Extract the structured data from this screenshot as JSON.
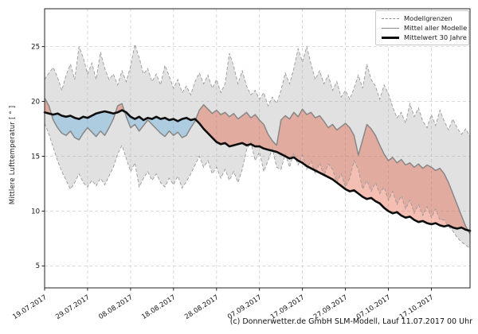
{
  "caption": "(c) Donnerwetter.de GmbH SLM-Modell, Lauf 11.07.2017 00 Uhr",
  "legend": {
    "items": [
      {
        "label": "Modellgrenzen",
        "style": "dashed-gray"
      },
      {
        "label": "Mittel aller Modelle",
        "style": "solid-gray"
      },
      {
        "label": "Mittelwert 30 Jahre",
        "style": "thick-black"
      }
    ]
  },
  "chart_data": {
    "type": "line",
    "title": "",
    "xlabel": "",
    "ylabel": "Mittlere Lufttemperatur [ ° ]",
    "ylim": [
      3.0,
      28.45
    ],
    "yticks": [
      5,
      10,
      15,
      20,
      25
    ],
    "grid": true,
    "legend_position": "upper right",
    "x_start_date": "19.07.2017",
    "x_step_days": 1,
    "x_ticks": [
      {
        "day": 0,
        "label": "19.07.2017"
      },
      {
        "day": 10,
        "label": "29.07.2017"
      },
      {
        "day": 20,
        "label": "08.08.2017"
      },
      {
        "day": 30,
        "label": "18.08.2017"
      },
      {
        "day": 40,
        "label": "28.08.2017"
      },
      {
        "day": 50,
        "label": "07.09.2017"
      },
      {
        "day": 60,
        "label": "17.09.2017"
      },
      {
        "day": 70,
        "label": "27.09.2017"
      },
      {
        "day": 80,
        "label": "07.10.2017"
      },
      {
        "day": 90,
        "label": "17.10.2017"
      }
    ],
    "colors": {
      "band_fill": "rgba(170,170,170,0.35)",
      "bound_line": "#999999",
      "mean_line": "#878787",
      "climate_line": "#0d0d0d",
      "warm_fill": "rgba(225,85,55,0.38)",
      "cold_fill": "rgba(110,180,225,0.45)",
      "grid": "#d0d0d0",
      "frame": "#222222",
      "tick_text": "#111111"
    },
    "series": [
      {
        "name": "Modellgrenze oben",
        "role": "upper_bound",
        "values": [
          22.0,
          22.6,
          23.1,
          22.2,
          21.0,
          22.4,
          23.4,
          22.0,
          25.0,
          24.0,
          22.5,
          23.5,
          22.0,
          24.5,
          23.0,
          22.0,
          22.5,
          21.5,
          22.8,
          21.8,
          23.2,
          25.2,
          24.0,
          22.5,
          23.0,
          21.8,
          22.5,
          21.5,
          23.3,
          22.3,
          21.2,
          22.0,
          20.8,
          21.4,
          20.6,
          21.8,
          22.6,
          21.6,
          22.4,
          21.2,
          22.0,
          20.8,
          21.6,
          24.4,
          23.2,
          21.6,
          22.8,
          21.4,
          20.6,
          21.0,
          20.2,
          20.8,
          19.6,
          20.4,
          19.8,
          21.0,
          22.6,
          21.6,
          23.0,
          24.8,
          23.6,
          25.0,
          23.4,
          22.0,
          22.8,
          21.6,
          22.4,
          21.0,
          21.8,
          20.4,
          21.0,
          20.2,
          21.2,
          22.4,
          21.2,
          23.4,
          22.0,
          21.4,
          20.2,
          21.5,
          20.7,
          19.5,
          18.5,
          19.0,
          18.0,
          19.8,
          18.6,
          19.4,
          18.2,
          17.6,
          18.8,
          17.8,
          19.2,
          18.2,
          17.4,
          18.4,
          17.6,
          17.0,
          17.5,
          16.8
        ]
      },
      {
        "name": "Modellgrenze unten",
        "role": "lower_bound",
        "values": [
          18.0,
          17.0,
          15.8,
          14.6,
          13.6,
          12.8,
          12.0,
          12.6,
          13.4,
          12.6,
          12.2,
          12.8,
          12.3,
          13.0,
          12.4,
          13.2,
          14.0,
          15.2,
          16.0,
          14.8,
          13.6,
          14.4,
          12.2,
          13.0,
          13.6,
          12.8,
          13.4,
          12.6,
          12.2,
          13.0,
          12.4,
          13.2,
          12.1,
          12.7,
          13.4,
          14.2,
          15.0,
          14.0,
          14.6,
          13.4,
          14.0,
          13.0,
          13.8,
          12.8,
          13.6,
          12.6,
          13.8,
          15.6,
          16.3,
          14.6,
          15.4,
          13.6,
          14.6,
          15.7,
          14.0,
          13.8,
          15.2,
          14.0,
          15.3,
          14.2,
          15.1,
          13.8,
          14.6,
          13.4,
          14.4,
          13.2,
          14.3,
          13.8,
          12.6,
          13.4,
          12.2,
          13.0,
          14.6,
          13.8,
          12.0,
          12.8,
          11.8,
          12.6,
          11.6,
          12.2,
          11.0,
          11.8,
          10.6,
          11.4,
          10.2,
          11.0,
          9.8,
          10.6,
          9.6,
          10.4,
          9.4,
          10.2,
          9.2,
          9.2,
          8.6,
          8.2,
          7.6,
          7.2,
          6.9,
          6.6
        ]
      },
      {
        "name": "Mittel aller Modelle",
        "role": "model_mean",
        "values": [
          20.3,
          19.6,
          18.3,
          17.6,
          17.1,
          16.9,
          17.3,
          16.7,
          16.5,
          17.1,
          17.6,
          17.2,
          16.8,
          17.3,
          16.9,
          17.6,
          18.4,
          19.6,
          19.8,
          18.6,
          17.6,
          17.9,
          17.3,
          17.8,
          18.3,
          17.9,
          17.5,
          17.1,
          16.8,
          17.3,
          16.9,
          17.2,
          16.7,
          16.9,
          17.6,
          18.2,
          19.2,
          19.7,
          19.3,
          18.9,
          19.2,
          18.8,
          19.0,
          18.6,
          18.9,
          18.4,
          18.7,
          19.0,
          18.5,
          18.8,
          18.3,
          17.9,
          17.0,
          16.4,
          16.0,
          18.3,
          18.7,
          18.4,
          19.0,
          18.6,
          19.3,
          18.8,
          19.0,
          18.5,
          18.7,
          18.2,
          17.6,
          17.9,
          17.4,
          17.7,
          18.0,
          17.6,
          16.9,
          15.1,
          16.5,
          17.9,
          17.5,
          16.9,
          16.0,
          15.2,
          14.6,
          14.9,
          14.4,
          14.7,
          14.2,
          14.4,
          14.0,
          14.3,
          13.9,
          14.2,
          14.0,
          13.7,
          13.9,
          13.4,
          12.6,
          11.6,
          10.6,
          9.6,
          8.6,
          7.9
        ]
      },
      {
        "name": "Mittelwert 30 Jahre",
        "role": "climate_mean_30y",
        "values": [
          19.0,
          18.9,
          18.8,
          18.9,
          18.7,
          18.6,
          18.7,
          18.5,
          18.4,
          18.6,
          18.5,
          18.7,
          18.9,
          19.0,
          19.1,
          19.0,
          18.9,
          19.0,
          19.2,
          19.0,
          18.6,
          18.4,
          18.6,
          18.3,
          18.5,
          18.4,
          18.6,
          18.4,
          18.5,
          18.3,
          18.4,
          18.2,
          18.4,
          18.5,
          18.3,
          18.4,
          18.0,
          17.5,
          17.1,
          16.7,
          16.3,
          16.1,
          16.2,
          15.9,
          16.0,
          16.1,
          16.2,
          16.0,
          16.1,
          15.9,
          15.9,
          15.7,
          15.6,
          15.5,
          15.4,
          15.2,
          15.0,
          14.8,
          14.9,
          14.6,
          14.4,
          14.1,
          13.9,
          13.7,
          13.5,
          13.3,
          13.1,
          12.9,
          12.6,
          12.3,
          12.0,
          11.8,
          11.9,
          11.6,
          11.3,
          11.1,
          11.2,
          10.9,
          10.7,
          10.3,
          10.0,
          9.8,
          9.9,
          9.6,
          9.4,
          9.5,
          9.2,
          9.0,
          9.1,
          8.9,
          8.8,
          8.9,
          8.7,
          8.6,
          8.7,
          8.5,
          8.4,
          8.5,
          8.3,
          8.2
        ]
      }
    ]
  }
}
